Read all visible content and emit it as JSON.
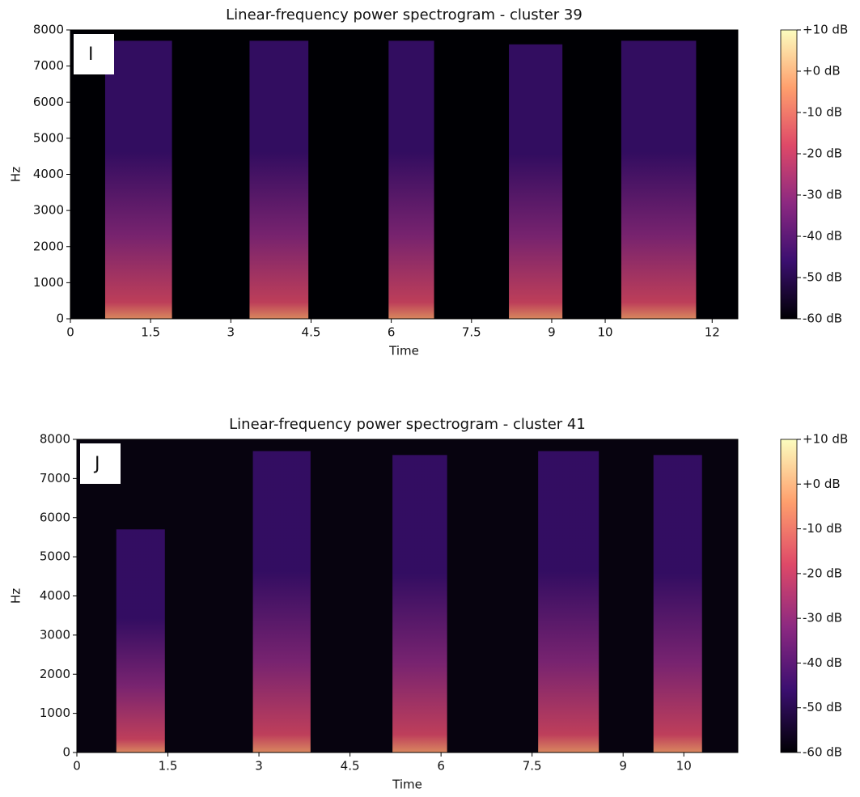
{
  "chart_data": [
    {
      "type": "spectrogram",
      "title": "Linear-frequency power spectrogram - cluster 39",
      "panel_label": "I",
      "x_label": "Time",
      "y_label": "Hz",
      "xlim": [
        0,
        12.48
      ],
      "xticks": [
        0,
        1.5,
        3,
        4.5,
        6,
        7.5,
        9,
        10,
        12
      ],
      "ylim": [
        0,
        8000
      ],
      "yticks": [
        0,
        1000,
        2000,
        3000,
        4000,
        5000,
        6000,
        7000,
        8000
      ],
      "colormap": [
        "#000004",
        "#3b0f70",
        "#8c2981",
        "#de4968",
        "#fe9f6d",
        "#fcfdbf"
      ],
      "background": "#000004",
      "segments": [
        {
          "start": 0.65,
          "end": 1.9,
          "top": 7700
        },
        {
          "start": 3.35,
          "end": 4.45,
          "top": 7700
        },
        {
          "start": 5.95,
          "end": 6.8,
          "top": 7700
        },
        {
          "start": 8.2,
          "end": 9.2,
          "top": 7600
        },
        {
          "start": 10.3,
          "end": 11.7,
          "top": 7700
        }
      ],
      "colorbar_lim": [
        -60,
        10
      ],
      "colorbar_ticks": [
        {
          "value": 10,
          "label": "+10 dB"
        },
        {
          "value": 0,
          "label": "+0 dB"
        },
        {
          "value": -10,
          "label": "-10 dB"
        },
        {
          "value": -20,
          "label": "-20 dB"
        },
        {
          "value": -30,
          "label": "-30 dB"
        },
        {
          "value": -40,
          "label": "-40 dB"
        },
        {
          "value": -50,
          "label": "-50 dB"
        },
        {
          "value": -60,
          "label": "-60 dB"
        }
      ]
    },
    {
      "type": "spectrogram",
      "title": "Linear-frequency power spectrogram - cluster 41",
      "panel_label": "J",
      "x_label": "Time",
      "y_label": "Hz",
      "xlim": [
        0,
        10.89
      ],
      "xticks": [
        0,
        1.5,
        3,
        4.5,
        6,
        7.5,
        9,
        10
      ],
      "ylim": [
        0,
        8000
      ],
      "yticks": [
        0,
        1000,
        2000,
        3000,
        4000,
        5000,
        6000,
        7000,
        8000
      ],
      "colormap": [
        "#000004",
        "#3b0f70",
        "#8c2981",
        "#de4968",
        "#fe9f6d",
        "#fcfdbf"
      ],
      "background": "#07030f",
      "segments": [
        {
          "start": 0.65,
          "end": 1.45,
          "top": 5700
        },
        {
          "start": 2.9,
          "end": 3.85,
          "top": 7700
        },
        {
          "start": 5.2,
          "end": 6.1,
          "top": 7600
        },
        {
          "start": 7.6,
          "end": 8.6,
          "top": 7700
        },
        {
          "start": 9.5,
          "end": 10.3,
          "top": 7600
        }
      ],
      "colorbar_lim": [
        -60,
        10
      ],
      "colorbar_ticks": [
        {
          "value": 10,
          "label": "+10 dB"
        },
        {
          "value": 0,
          "label": "+0 dB"
        },
        {
          "value": -10,
          "label": "-10 dB"
        },
        {
          "value": -20,
          "label": "-20 dB"
        },
        {
          "value": -30,
          "label": "-30 dB"
        },
        {
          "value": -40,
          "label": "-40 dB"
        },
        {
          "value": -50,
          "label": "-50 dB"
        },
        {
          "value": -60,
          "label": "-60 dB"
        }
      ]
    }
  ]
}
